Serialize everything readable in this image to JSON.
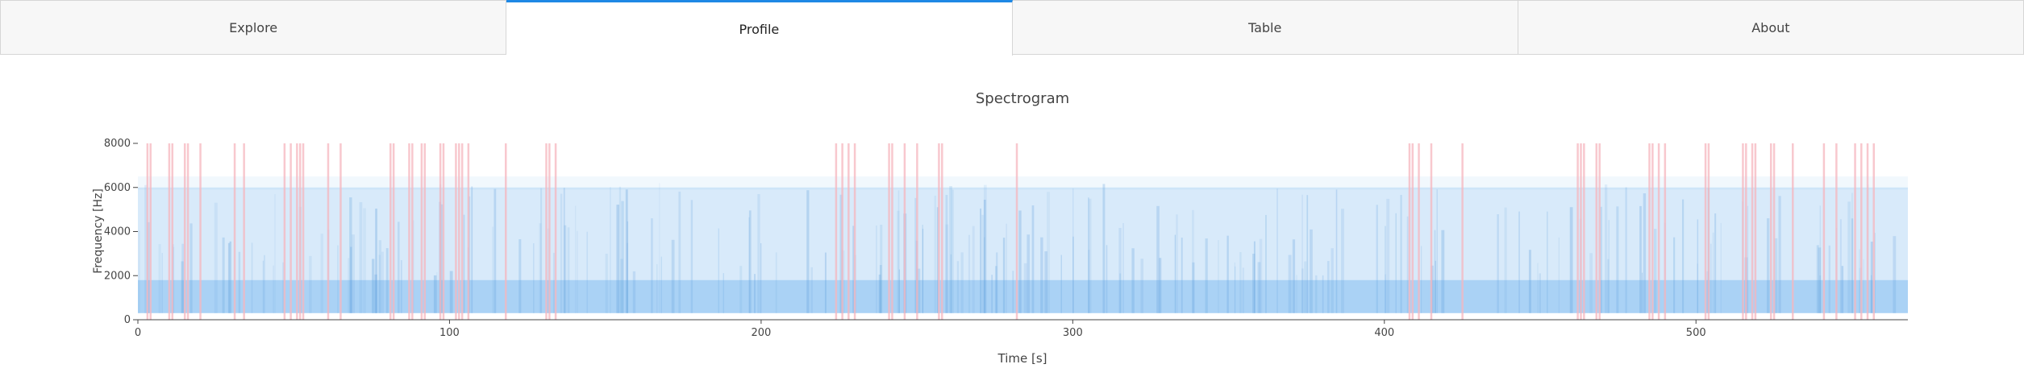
{
  "tabs": [
    {
      "label": "Explore",
      "active": false
    },
    {
      "label": "Profile",
      "active": true
    },
    {
      "label": "Table",
      "active": false
    },
    {
      "label": "About",
      "active": false
    }
  ],
  "colors": {
    "accent": "#1e88e5",
    "spectrogram": "#8ec3f2",
    "highlight": "#f5b5bd"
  },
  "chart_data": {
    "type": "heatmap",
    "title": "Spectrogram",
    "xlabel": "Time [s]",
    "ylabel": "Frequency [Hz]",
    "xlim": [
      0,
      568
    ],
    "ylim": [
      0,
      8000
    ],
    "xticks": [
      0,
      100,
      200,
      300,
      400,
      500
    ],
    "yticks": [
      0,
      2000,
      4000,
      6000,
      8000
    ],
    "grid": false,
    "highlighted_times": [
      3,
      4,
      10,
      11,
      15,
      16,
      20,
      31,
      34,
      47,
      49,
      51,
      52,
      53,
      61,
      65,
      81,
      82,
      87,
      88,
      91,
      92,
      97,
      98,
      102,
      103,
      104,
      106,
      118,
      131,
      132,
      134,
      224,
      226,
      228,
      230,
      241,
      242,
      246,
      250,
      257,
      258,
      282,
      408,
      409,
      411,
      415,
      425,
      462,
      463,
      464,
      468,
      469,
      485,
      486,
      488,
      490,
      503,
      504,
      515,
      516,
      518,
      519,
      524,
      525,
      531,
      541,
      545,
      551,
      553,
      555,
      557
    ]
  }
}
